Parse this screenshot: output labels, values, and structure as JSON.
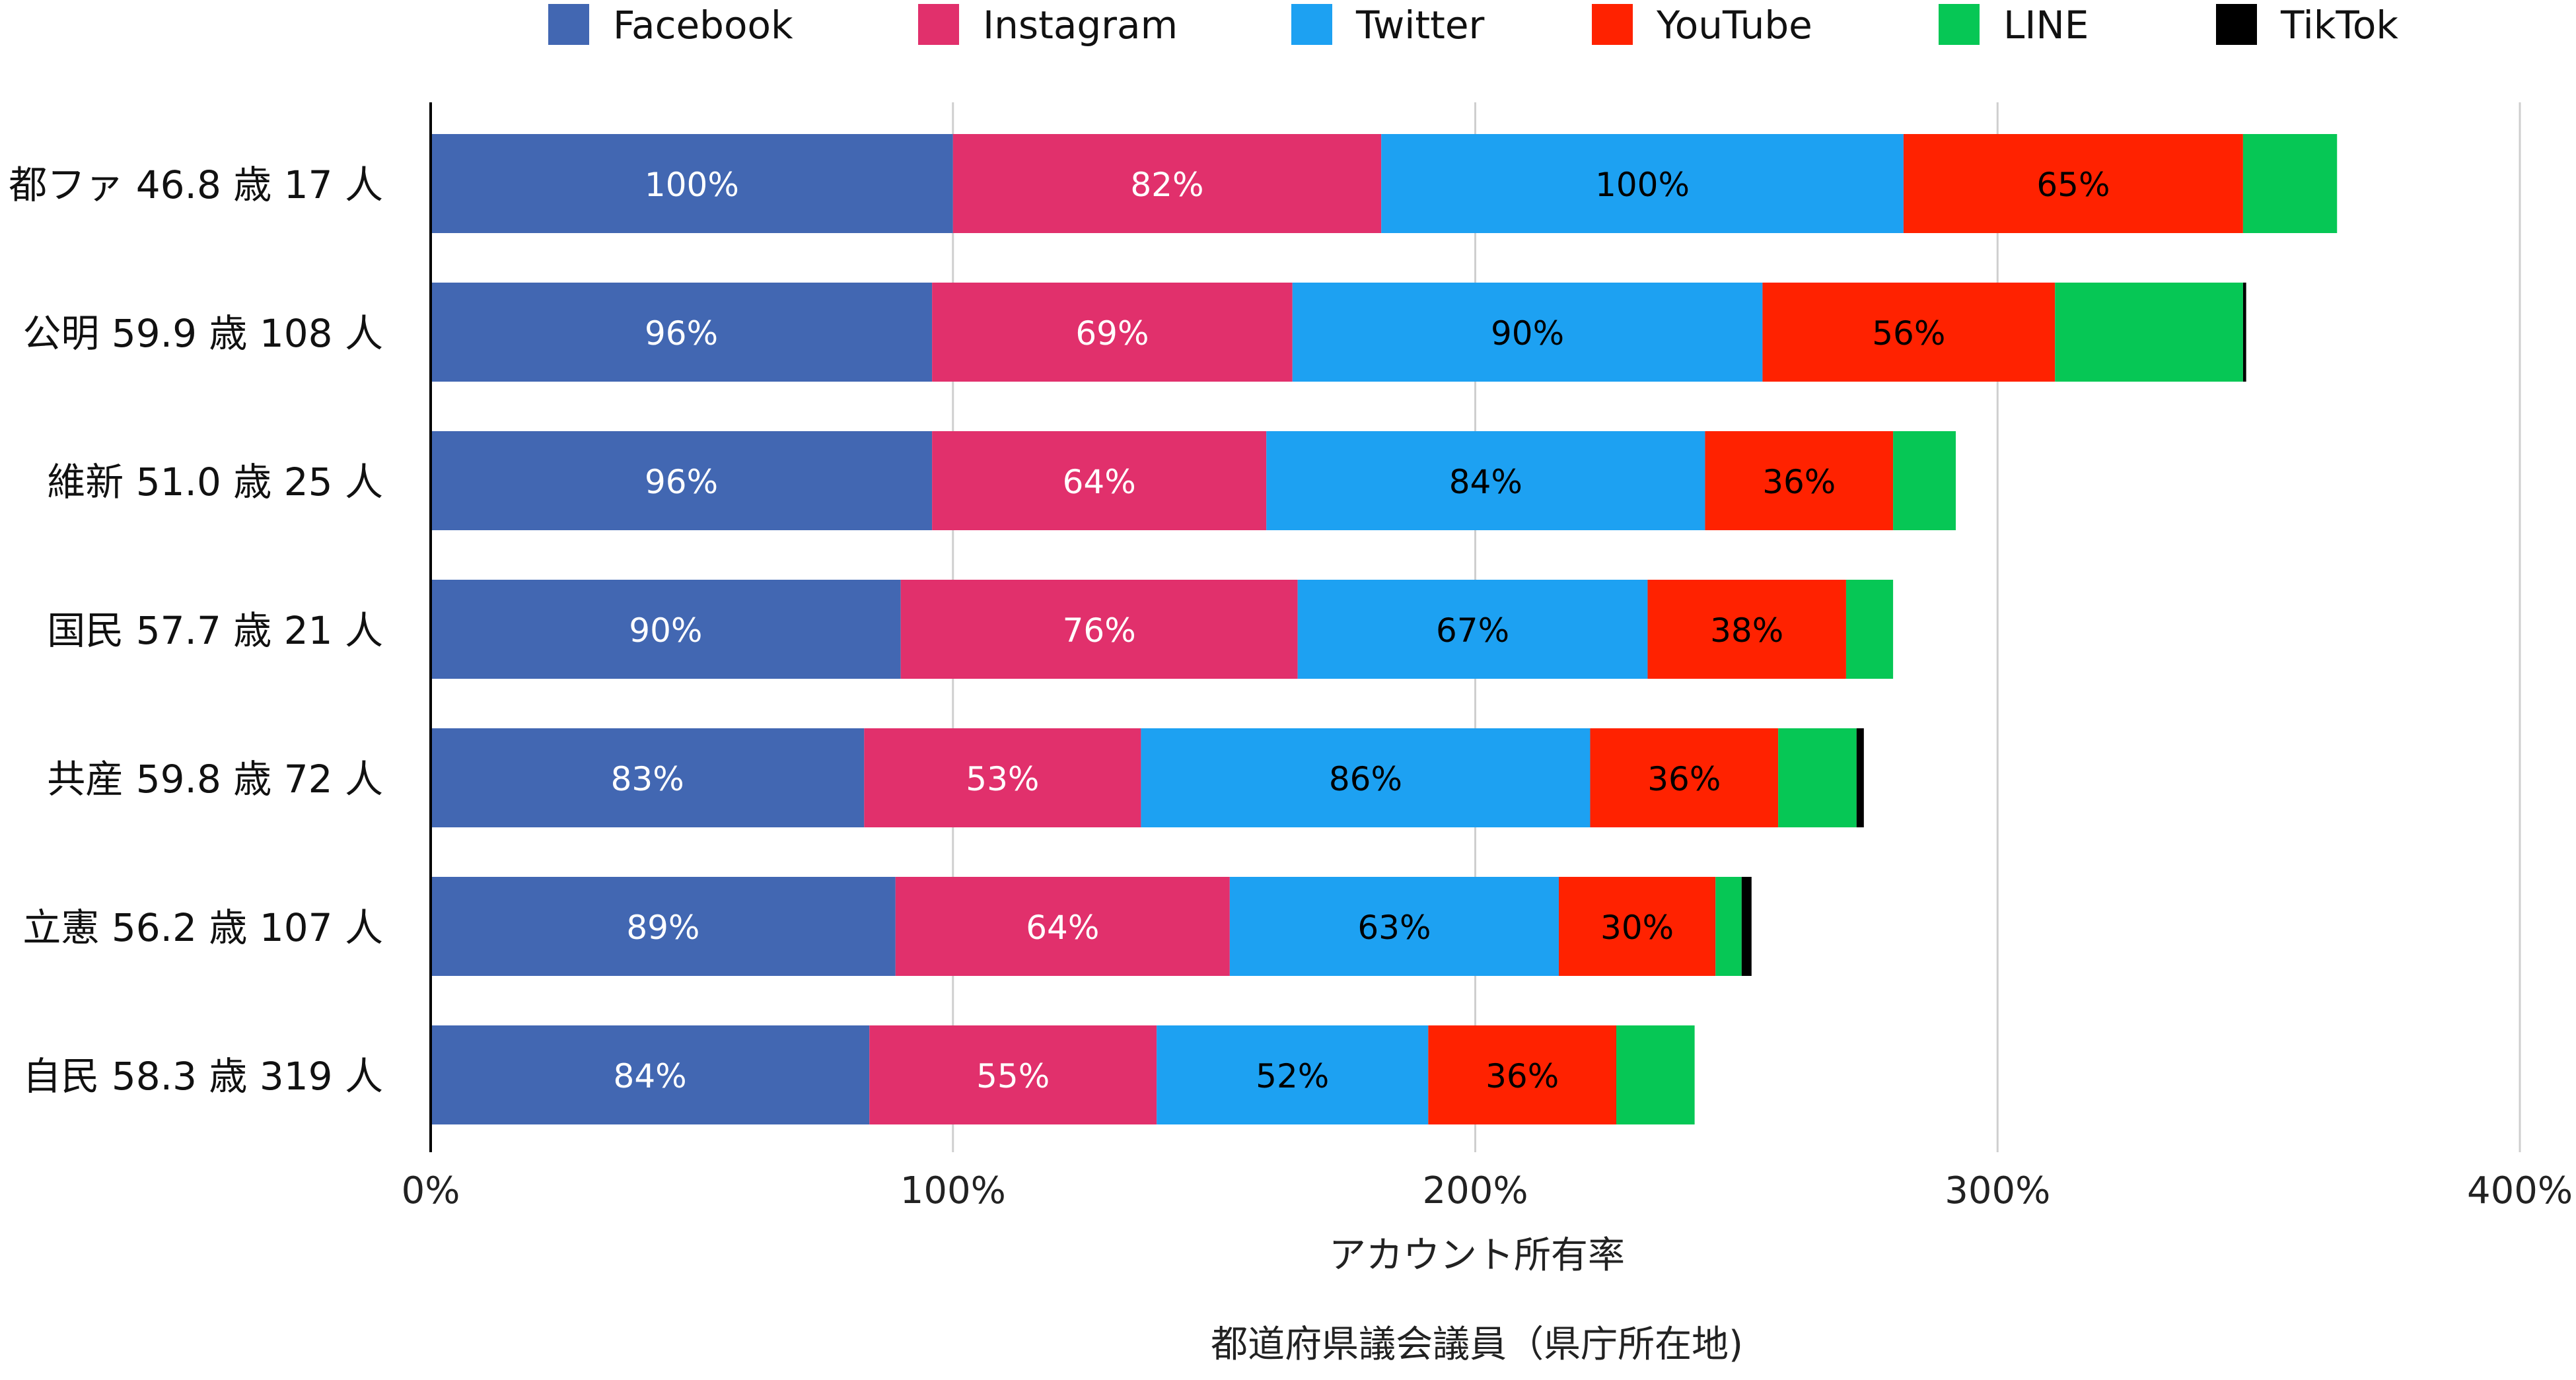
{
  "chart_data": {
    "type": "bar",
    "orientation": "horizontal",
    "stacked": true,
    "categories": [
      "都ファ 46.8 歳 17 人",
      "公明 59.9 歳 108 人",
      "維新 51.0 歳 25 人",
      "国民 57.7 歳 21 人",
      "共産 59.8 歳 72 人",
      "立憲 56.2 歳 107 人",
      "自民 58.3 歳 319 人"
    ],
    "series": [
      {
        "name": "Facebook",
        "color": "#4267B2",
        "label_color": "#ffffff",
        "values": [
          100,
          96,
          96,
          90,
          83,
          89,
          84
        ],
        "labels": [
          "100%",
          "96%",
          "96%",
          "90%",
          "83%",
          "89%",
          "84%"
        ]
      },
      {
        "name": "Instagram",
        "color": "#E1306C",
        "label_color": "#ffffff",
        "values": [
          82,
          69,
          64,
          76,
          53,
          64,
          55
        ],
        "labels": [
          "82%",
          "69%",
          "64%",
          "76%",
          "53%",
          "64%",
          "55%"
        ]
      },
      {
        "name": "Twitter",
        "color": "#1DA1F2",
        "label_color": "#000000",
        "values": [
          100,
          90,
          84,
          67,
          86,
          63,
          52
        ],
        "labels": [
          "100%",
          "90%",
          "84%",
          "67%",
          "86%",
          "63%",
          "52%"
        ]
      },
      {
        "name": "YouTube",
        "color": "#FF2200",
        "label_color": "#000000",
        "values": [
          65,
          56,
          36,
          38,
          36,
          30,
          36
        ],
        "labels": [
          "65%",
          "56%",
          "36%",
          "38%",
          "36%",
          "30%",
          "36%"
        ]
      },
      {
        "name": "LINE",
        "color": "#06C755",
        "label_color": "#000000",
        "values": [
          18,
          36,
          12,
          9,
          15,
          5,
          15
        ],
        "labels": [
          "",
          "",
          "",
          "",
          "",
          "",
          ""
        ]
      },
      {
        "name": "TikTok",
        "color": "#000000",
        "label_color": "#ffffff",
        "values": [
          0,
          0.6,
          0,
          0,
          1.4,
          1.9,
          0
        ],
        "labels": [
          "",
          "",
          "",
          "",
          "",
          "",
          ""
        ]
      }
    ],
    "xlim": [
      0,
      400
    ],
    "xticks": [
      0,
      100,
      200,
      300,
      400
    ],
    "xtick_labels": [
      "0%",
      "100%",
      "200%",
      "300%",
      "400%"
    ],
    "xlabel": "アカウント所有率",
    "footnote": "都道府県議会議員（県庁所在地)",
    "legend_position": "top",
    "grid": "vertical"
  }
}
